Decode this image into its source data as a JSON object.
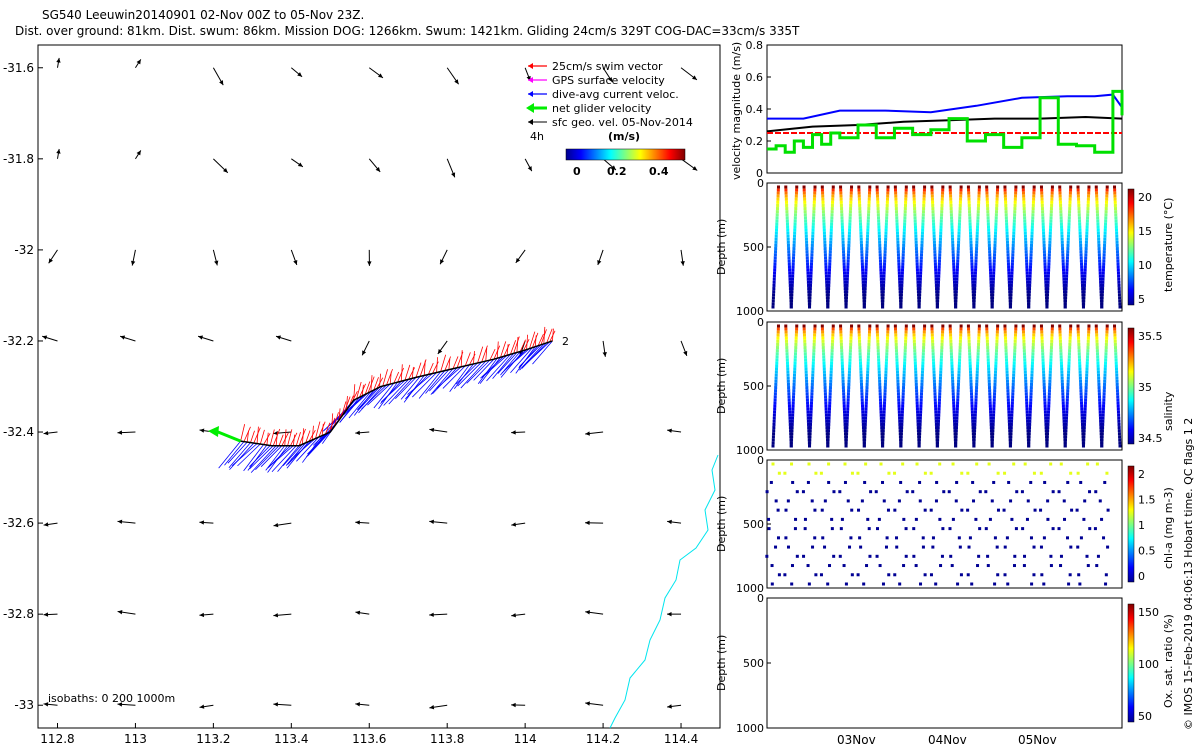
{
  "header": {
    "line1": "SG540 Leeuwin20140901 02-Nov 00Z to 05-Nov 23Z.",
    "line2": "Dist. over ground: 81km. Dist. swum: 86km. Mission DOG: 1266km. Swum: 1421km. Gliding 24cm/s 329T COG-DAC=33cm/s 335T"
  },
  "credit": "© IMOS 15-Feb-2019 04:06:13 Hobart time. QC flags 1  2",
  "colors": {
    "swim": "#ff0000",
    "gps": "#ff00ff",
    "dac": "#0000ff",
    "net": "#00ee00",
    "sfc": "#000000",
    "coast": "#00e5ee"
  },
  "chart_data": [
    {
      "type": "scatter",
      "name": "map",
      "xlim": [
        112.75,
        114.5
      ],
      "ylim": [
        -33.05,
        -31.55
      ],
      "x_ticks": [
        112.8,
        113,
        113.2,
        113.4,
        113.6,
        113.8,
        114,
        114.2,
        114.4
      ],
      "y_ticks": [
        -31.6,
        -31.8,
        -32,
        -32.2,
        -32.4,
        -32.6,
        -32.8,
        -33
      ],
      "legend": [
        "25cm/s swim vector",
        "GPS surface velocity",
        "dive-avg current veloc.",
        "net glider velocity",
        "sfc geo. vel. 05-Nov-2014"
      ],
      "legend_extra": "4h",
      "colorbar": {
        "label": "(m/s)",
        "ticks": [
          "0",
          "0.2",
          "0.4"
        ],
        "range": [
          0,
          0.5
        ]
      },
      "isobaths_label": "isobaths: 0   200  1000m",
      "track_end_label": "2",
      "track": [
        [
          113.27,
          -32.42
        ],
        [
          113.35,
          -32.43
        ],
        [
          113.42,
          -32.43
        ],
        [
          113.5,
          -32.4
        ],
        [
          113.56,
          -32.33
        ],
        [
          113.63,
          -32.3
        ],
        [
          113.72,
          -32.28
        ],
        [
          113.82,
          -32.26
        ],
        [
          113.92,
          -32.24
        ],
        [
          114.0,
          -32.22
        ],
        [
          114.07,
          -32.2
        ]
      ]
    },
    {
      "type": "line",
      "name": "velocity",
      "ylabel": "velocity magnitude (m/s)",
      "ylim": [
        0,
        0.8
      ],
      "y_ticks": [
        "0",
        "0.2",
        "0.4",
        "0.6",
        "0.8"
      ],
      "x_days": [
        1,
        4.9
      ],
      "series": [
        {
          "color": "blue",
          "x": [
            1,
            1.4,
            1.8,
            2.3,
            2.8,
            3.3,
            3.8,
            4.3,
            4.6,
            4.8,
            4.9
          ],
          "y": [
            0.34,
            0.34,
            0.39,
            0.39,
            0.38,
            0.42,
            0.47,
            0.48,
            0.48,
            0.49,
            0.41
          ]
        },
        {
          "color": "black",
          "x": [
            1,
            1.5,
            2,
            2.5,
            3,
            3.5,
            4,
            4.5,
            4.9
          ],
          "y": [
            0.26,
            0.29,
            0.3,
            0.32,
            0.33,
            0.34,
            0.34,
            0.35,
            0.34
          ]
        },
        {
          "color": "red",
          "x": [
            1,
            4.9
          ],
          "y": [
            0.25,
            0.25
          ]
        },
        {
          "color": "#00e000",
          "x": [
            1,
            1.1,
            1.2,
            1.3,
            1.4,
            1.5,
            1.6,
            1.7,
            1.8,
            2.0,
            2.2,
            2.4,
            2.6,
            2.8,
            3.0,
            3.2,
            3.4,
            3.6,
            3.8,
            4.0,
            4.2,
            4.4,
            4.6,
            4.8,
            4.9
          ],
          "y": [
            0.15,
            0.17,
            0.13,
            0.2,
            0.16,
            0.24,
            0.18,
            0.25,
            0.22,
            0.3,
            0.22,
            0.28,
            0.24,
            0.27,
            0.34,
            0.2,
            0.24,
            0.16,
            0.22,
            0.47,
            0.18,
            0.17,
            0.13,
            0.51,
            0.36
          ]
        }
      ]
    },
    {
      "type": "heatmap",
      "name": "temperature",
      "ylabel": "Depth (m)",
      "y_ticks": [
        "0",
        "500",
        "1000"
      ],
      "cbar_label": "temperature (°C)",
      "cbar_ticks": [
        "20",
        "15",
        "10",
        "5"
      ],
      "range": [
        3,
        22
      ]
    },
    {
      "type": "heatmap",
      "name": "salinity",
      "ylabel": "Depth (m)",
      "y_ticks": [
        "0",
        "500",
        "1000"
      ],
      "cbar_label": "salinity",
      "cbar_ticks": [
        "35.5",
        "35",
        "34.5"
      ],
      "range": [
        34.3,
        35.9
      ]
    },
    {
      "type": "heatmap",
      "name": "chla",
      "ylabel": "Depth (m)",
      "y_ticks": [
        "0",
        "500",
        "1000"
      ],
      "cbar_label": "chl-a (mg m-3)",
      "cbar_ticks": [
        "2",
        "1.5",
        "1",
        "0.5",
        "0"
      ],
      "range": [
        0,
        2
      ]
    },
    {
      "type": "heatmap",
      "name": "oxygen",
      "ylabel": "Depth (m)",
      "y_ticks": [
        "0",
        "500",
        "1000"
      ],
      "cbar_label": "Ox. sat. ratio (%)",
      "cbar_ticks": [
        "150",
        "100",
        "50"
      ],
      "range": [
        20,
        170
      ],
      "x_ticks": [
        "03Nov",
        "04Nov",
        "05Nov"
      ]
    }
  ]
}
